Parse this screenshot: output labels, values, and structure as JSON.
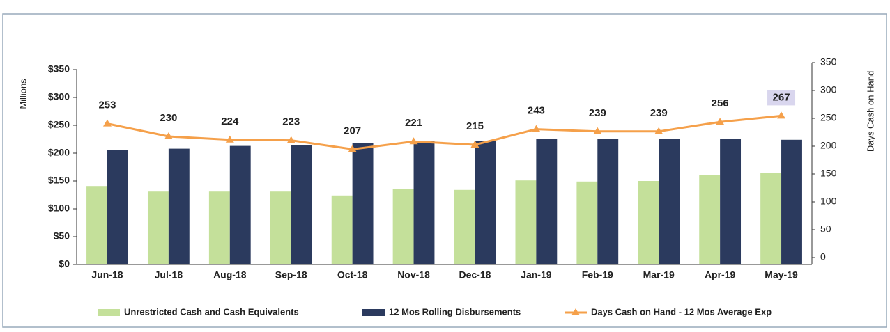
{
  "chart_data": {
    "type": "bar",
    "categories": [
      "Jun-18",
      "Jul-18",
      "Aug-18",
      "Sep-18",
      "Oct-18",
      "Nov-18",
      "Dec-18",
      "Jan-19",
      "Feb-19",
      "Mar-19",
      "Apr-19",
      "May-19"
    ],
    "ylabel": "Millions",
    "y2label": "Days Cash on Hand",
    "ylim": [
      0,
      350
    ],
    "yticks": [
      {
        "value": 0,
        "label": "$0"
      },
      {
        "value": 50,
        "label": "$50"
      },
      {
        "value": 100,
        "label": "$100"
      },
      {
        "value": 150,
        "label": "$150"
      },
      {
        "value": 200,
        "label": "$200"
      },
      {
        "value": 250,
        "label": "$250"
      },
      {
        "value": 300,
        "label": "$300"
      },
      {
        "value": 350,
        "label": "$350"
      }
    ],
    "y2lim": [
      0,
      350
    ],
    "y2ticks": [
      0,
      50,
      100,
      150,
      200,
      250,
      300,
      350
    ],
    "legend": "bottom",
    "series": [
      {
        "name": "Unrestricted Cash and Cash Equivalents",
        "type": "bar",
        "color": "#c4e09a",
        "values": [
          141,
          131,
          131,
          131,
          124,
          135,
          134,
          151,
          149,
          150,
          160,
          165
        ]
      },
      {
        "name": "12 Mos Rolling Disbursements",
        "type": "bar",
        "color": "#2b3a5e",
        "values": [
          205,
          208,
          213,
          215,
          218,
          222,
          222,
          225,
          225,
          226,
          226,
          224
        ]
      },
      {
        "name": "Days Cash on Hand - 12 Mos Average Exp",
        "type": "line",
        "axis": "y2",
        "color": "#f5a04a",
        "values": [
          253,
          230,
          224,
          223,
          207,
          221,
          215,
          243,
          239,
          239,
          256,
          267
        ]
      }
    ]
  }
}
